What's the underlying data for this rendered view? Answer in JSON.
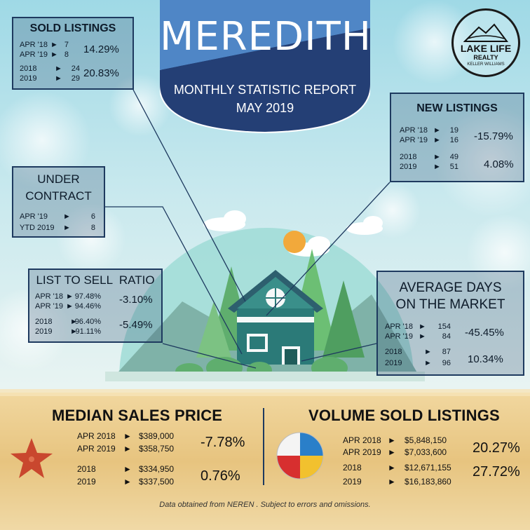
{
  "header": {
    "city": "MEREDITH",
    "subtitle_line1": "MONTHLY STATISTIC REPORT",
    "subtitle_line2": "MAY 2019"
  },
  "logo": {
    "line1": "LAKE LIFE",
    "line2": "REALTY",
    "line3": "KELLER WILLIAMS"
  },
  "sold_listings": {
    "title": "SOLD LISTINGS",
    "rows": [
      {
        "label": "APR '18",
        "value": "7"
      },
      {
        "label": "APR '19",
        "value": "8"
      },
      {
        "label": "2018",
        "value": "24"
      },
      {
        "label": "2019",
        "value": "29"
      }
    ],
    "pct_monthly": "14.29%",
    "pct_ytd": "20.83%"
  },
  "new_listings": {
    "title": "NEW LISTINGS",
    "rows": [
      {
        "label": "APR '18",
        "value": "19"
      },
      {
        "label": "APR '19",
        "value": "16"
      },
      {
        "label": "2018",
        "value": "49"
      },
      {
        "label": "2019",
        "value": "51"
      }
    ],
    "pct_monthly": "-15.79%",
    "pct_ytd": "4.08%"
  },
  "under_contract": {
    "title_line1": "UNDER",
    "title_line2": "CONTRACT",
    "rows": [
      {
        "label": "APR '19",
        "value": "6"
      },
      {
        "label": "YTD 2019",
        "value": "8"
      }
    ]
  },
  "list_to_sell": {
    "title": "LIST TO SELL  RATIO",
    "rows": [
      {
        "label": "APR '18",
        "value": "97.48%"
      },
      {
        "label": "APR '19",
        "value": "94.46%"
      },
      {
        "label": "2018",
        "value": "96.40%"
      },
      {
        "label": "2019",
        "value": "91.11%"
      }
    ],
    "pct_monthly": "-3.10%",
    "pct_ytd": "-5.49%"
  },
  "avg_days": {
    "title_line1": "AVERAGE DAYS",
    "title_line2": "ON THE MARKET",
    "rows": [
      {
        "label": "APR '18",
        "value": "154"
      },
      {
        "label": "APR '19",
        "value": "84"
      },
      {
        "label": "2018",
        "value": "87"
      },
      {
        "label": "2019",
        "value": "96"
      }
    ],
    "pct_monthly": "-45.45%",
    "pct_ytd": "10.34%"
  },
  "median_price": {
    "title": "MEDIAN SALES PRICE",
    "rows": [
      {
        "label": "APR 2018",
        "value": "$389,000"
      },
      {
        "label": "APR 2019",
        "value": "$358,750"
      },
      {
        "label": "2018",
        "value": "$334,950"
      },
      {
        "label": "2019",
        "value": "$337,500"
      }
    ],
    "pct_monthly": "-7.78%",
    "pct_ytd": "0.76%"
  },
  "volume_sold": {
    "title": "VOLUME SOLD LISTINGS",
    "rows": [
      {
        "label": "APR 2018",
        "value": "$5,848,150"
      },
      {
        "label": "APR 2019",
        "value": "$7,033,600"
      },
      {
        "label": "2018",
        "value": "$12,671,155"
      },
      {
        "label": "2019",
        "value": "$16,183,860"
      }
    ],
    "pct_monthly": "20.27%",
    "pct_ytd": "27.72%"
  },
  "arrow_glyph": "►",
  "footer": "Data obtained from NEREN . Subject to errors and omissions.",
  "colors": {
    "banner_light": "#4f86c6",
    "banner_dark": "#1f3f74",
    "sand": "#e8c98a",
    "house": "#2b7a78",
    "sun": "#f2a93b"
  }
}
